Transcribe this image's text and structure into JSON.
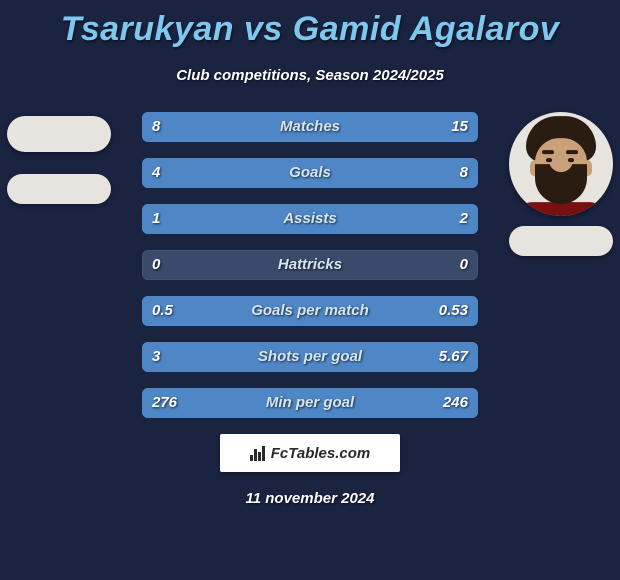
{
  "title": {
    "player1": "Tsarukyan",
    "vs": "vs",
    "player2": "Gamid Agalarov",
    "color": "#7ec8f0"
  },
  "subtitle": "Club competitions, Season 2024/2025",
  "background_color": "#1a2340",
  "bar_track_color": "#3b4a6b",
  "left_bar_color": "#4f86c6",
  "right_bar_color": "#4f86c6",
  "avatar_bg": "#e7e4df",
  "stats": [
    {
      "label": "Matches",
      "left_val": "8",
      "right_val": "15",
      "left_pct": 34.8,
      "right_pct": 65.2
    },
    {
      "label": "Goals",
      "left_val": "4",
      "right_val": "8",
      "left_pct": 33.3,
      "right_pct": 66.7
    },
    {
      "label": "Assists",
      "left_val": "1",
      "right_val": "2",
      "left_pct": 33.3,
      "right_pct": 66.7
    },
    {
      "label": "Hattricks",
      "left_val": "0",
      "right_val": "0",
      "left_pct": 0,
      "right_pct": 0
    },
    {
      "label": "Goals per match",
      "left_val": "0.5",
      "right_val": "0.53",
      "left_pct": 48.5,
      "right_pct": 51.5
    },
    {
      "label": "Shots per goal",
      "left_val": "3",
      "right_val": "5.67",
      "left_pct": 34.6,
      "right_pct": 65.4
    },
    {
      "label": "Min per goal",
      "left_val": "276",
      "right_val": "246",
      "left_pct": 52.9,
      "right_pct": 47.1
    }
  ],
  "footer": {
    "logo_text": "FcTables.com",
    "date": "11 november 2024"
  }
}
